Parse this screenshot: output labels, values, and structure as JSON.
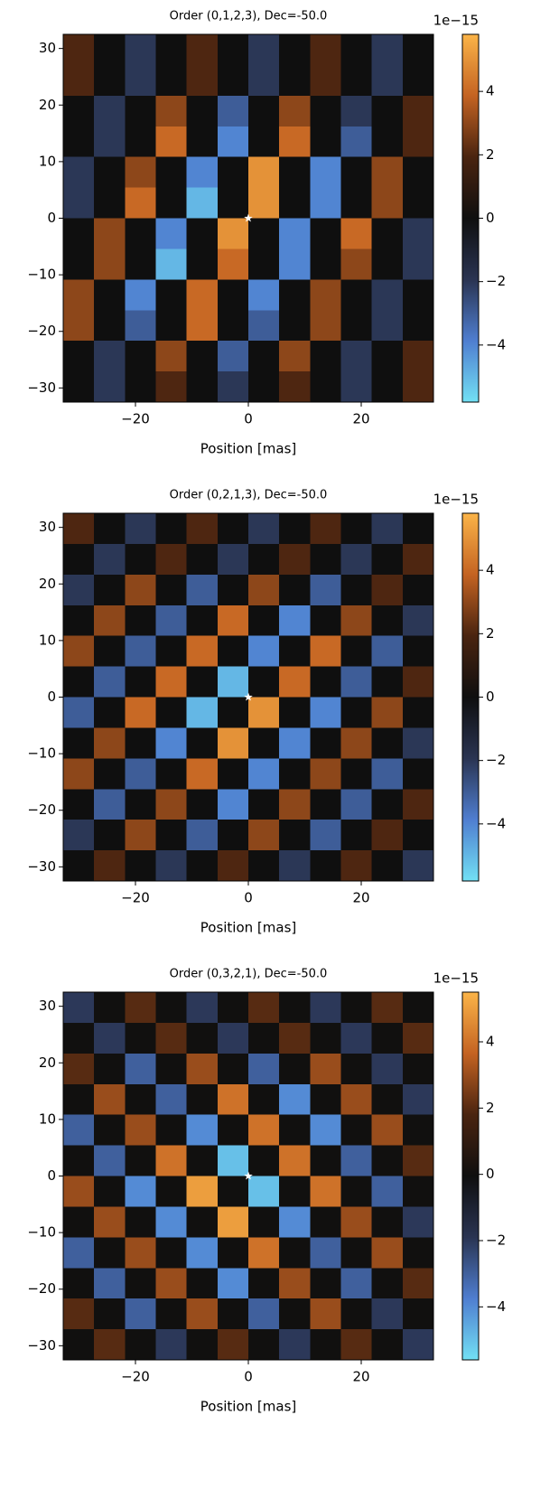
{
  "chart_data": [
    {
      "type": "heatmap",
      "title": "Order (0,1,2,3), Dec=-50.0",
      "xlabel": "Position [mas]",
      "xlim": [
        -32.8,
        32.8
      ],
      "ylim": [
        -32.5,
        32.5
      ],
      "xticks": [
        {
          "value": -20,
          "label": "−20"
        },
        0,
        20
      ],
      "yticks": [
        {
          "value": -30,
          "label": "−30"
        },
        {
          "value": -20,
          "label": "−20"
        },
        {
          "value": -10,
          "label": "−10"
        },
        0,
        10,
        20,
        30
      ],
      "clim": [
        -5.8,
        5.8
      ],
      "cticks": [
        {
          "value": -4,
          "label": "−4"
        },
        {
          "value": -2,
          "label": "−2"
        },
        0,
        2,
        4
      ],
      "cbar_offset_label": "1e−15",
      "colormap": [
        "#72e0f4",
        "#4f7ed0",
        "#2a3452",
        "#0f0f0f",
        "#4a2410",
        "#c46322",
        "#fbb448"
      ],
      "marker": {
        "x": 0,
        "y": 0,
        "color": "#ffffff"
      },
      "z": [
        [
          2,
          0,
          -2,
          0,
          2,
          0,
          -2,
          0,
          2,
          0,
          -2,
          0
        ],
        [
          2,
          0,
          -2,
          0,
          2,
          0,
          -2,
          0,
          2,
          0,
          -2,
          0
        ],
        [
          0,
          -2,
          0,
          3,
          0,
          -3,
          0,
          3,
          0,
          -2,
          0,
          2
        ],
        [
          0,
          -2,
          0,
          4,
          0,
          -4,
          0,
          4,
          0,
          -3,
          0,
          2
        ],
        [
          -2,
          0,
          3,
          0,
          -4,
          0,
          5,
          0,
          -4,
          0,
          3,
          0
        ],
        [
          -2,
          0,
          4,
          0,
          -5,
          0,
          5,
          0,
          -4,
          0,
          3,
          0
        ],
        [
          0,
          3,
          0,
          -4,
          0,
          5,
          0,
          -4,
          0,
          4,
          0,
          -2
        ],
        [
          0,
          3,
          0,
          -5,
          0,
          4,
          0,
          -4,
          0,
          3,
          0,
          -2
        ],
        [
          3,
          0,
          -4,
          0,
          4,
          0,
          -4,
          0,
          3,
          0,
          -2,
          0
        ],
        [
          3,
          0,
          -3,
          0,
          4,
          0,
          -3,
          0,
          3,
          0,
          -2,
          0
        ],
        [
          0,
          -2,
          0,
          3,
          0,
          -3,
          0,
          3,
          0,
          -2,
          0,
          2
        ],
        [
          0,
          -2,
          0,
          2,
          0,
          -2,
          0,
          2,
          0,
          -2,
          0,
          2
        ]
      ]
    },
    {
      "type": "heatmap",
      "title": "Order (0,2,1,3), Dec=-50.0",
      "xlabel": "Position [mas]",
      "xlim": [
        -32.8,
        32.8
      ],
      "ylim": [
        -32.5,
        32.5
      ],
      "xticks": [
        {
          "value": -20,
          "label": "−20"
        },
        0,
        20
      ],
      "yticks": [
        {
          "value": -30,
          "label": "−30"
        },
        {
          "value": -20,
          "label": "−20"
        },
        {
          "value": -10,
          "label": "−10"
        },
        0,
        10,
        20,
        30
      ],
      "clim": [
        -5.8,
        5.8
      ],
      "cticks": [
        {
          "value": -4,
          "label": "−4"
        },
        {
          "value": -2,
          "label": "−2"
        },
        0,
        2,
        4
      ],
      "cbar_offset_label": "1e−15",
      "colormap": [
        "#72e0f4",
        "#4f7ed0",
        "#2a3452",
        "#0f0f0f",
        "#4a2410",
        "#c46322",
        "#fbb448"
      ],
      "marker": {
        "x": 0,
        "y": 0,
        "color": "#ffffff"
      },
      "z": [
        [
          2,
          0,
          -2,
          0,
          2,
          0,
          -2,
          0,
          2,
          0,
          -2,
          0
        ],
        [
          0,
          -2,
          0,
          2,
          0,
          -2,
          0,
          2,
          0,
          -2,
          0,
          2
        ],
        [
          -2,
          0,
          3,
          0,
          -3,
          0,
          3,
          0,
          -3,
          0,
          2,
          0
        ],
        [
          0,
          3,
          0,
          -3,
          0,
          4,
          0,
          -4,
          0,
          3,
          0,
          -2
        ],
        [
          3,
          0,
          -3,
          0,
          4,
          0,
          -4,
          0,
          4,
          0,
          -3,
          0
        ],
        [
          0,
          -3,
          0,
          4,
          0,
          -5,
          0,
          4,
          0,
          -3,
          0,
          2
        ],
        [
          -3,
          0,
          4,
          0,
          -5,
          0,
          5,
          0,
          -4,
          0,
          3,
          0
        ],
        [
          0,
          3,
          0,
          -4,
          0,
          5,
          0,
          -4,
          0,
          3,
          0,
          -2
        ],
        [
          3,
          0,
          -3,
          0,
          4,
          0,
          -4,
          0,
          3,
          0,
          -3,
          0
        ],
        [
          0,
          -3,
          0,
          3,
          0,
          -4,
          0,
          3,
          0,
          -3,
          0,
          2
        ],
        [
          -2,
          0,
          3,
          0,
          -3,
          0,
          3,
          0,
          -3,
          0,
          2,
          0
        ],
        [
          0,
          2,
          0,
          -2,
          0,
          2,
          0,
          -2,
          0,
          2,
          0,
          -2
        ]
      ]
    },
    {
      "type": "heatmap",
      "title": "Order (0,3,2,1), Dec=-50.0",
      "xlabel": "Position [mas]",
      "xlim": [
        -32.8,
        32.8
      ],
      "ylim": [
        -32.5,
        32.5
      ],
      "xticks": [
        {
          "value": -20,
          "label": "−20"
        },
        0,
        20
      ],
      "yticks": [
        {
          "value": -30,
          "label": "−30"
        },
        {
          "value": -20,
          "label": "−20"
        },
        {
          "value": -10,
          "label": "−10"
        },
        0,
        10,
        20,
        30
      ],
      "clim": [
        -5.6,
        5.5
      ],
      "cticks": [
        {
          "value": -4,
          "label": "−4"
        },
        {
          "value": -2,
          "label": "−2"
        },
        0,
        2,
        4
      ],
      "cbar_offset_label": "1e−15",
      "colormap": [
        "#72e0f4",
        "#4f7ed0",
        "#2a3452",
        "#0f0f0f",
        "#4a2410",
        "#c46322",
        "#fbb448"
      ],
      "marker": {
        "x": 0,
        "y": 0,
        "color": "#ffffff"
      },
      "z": [
        [
          -2,
          0,
          2,
          0,
          -2,
          0,
          2,
          0,
          -2,
          0,
          2,
          0
        ],
        [
          0,
          -2,
          0,
          2,
          0,
          -2,
          0,
          2,
          0,
          -2,
          0,
          2
        ],
        [
          2,
          0,
          -3,
          0,
          3,
          0,
          -3,
          0,
          3,
          0,
          -2,
          0
        ],
        [
          0,
          3,
          0,
          -3,
          0,
          4,
          0,
          -4,
          0,
          3,
          0,
          -2
        ],
        [
          -3,
          0,
          3,
          0,
          -4,
          0,
          4,
          0,
          -4,
          0,
          3,
          0
        ],
        [
          0,
          -3,
          0,
          4,
          0,
          -5,
          0,
          4,
          0,
          -3,
          0,
          2
        ],
        [
          3,
          0,
          -4,
          0,
          5,
          0,
          -5,
          0,
          4,
          0,
          -3,
          0
        ],
        [
          0,
          3,
          0,
          -4,
          0,
          5,
          0,
          -4,
          0,
          3,
          0,
          -2
        ],
        [
          -3,
          0,
          3,
          0,
          -4,
          0,
          4,
          0,
          -3,
          0,
          3,
          0
        ],
        [
          0,
          -3,
          0,
          3,
          0,
          -4,
          0,
          3,
          0,
          -3,
          0,
          2
        ],
        [
          2,
          0,
          -3,
          0,
          3,
          0,
          -3,
          0,
          3,
          0,
          -2,
          0
        ],
        [
          0,
          2,
          0,
          -2,
          0,
          2,
          0,
          -2,
          0,
          2,
          0,
          -2
        ]
      ]
    }
  ]
}
